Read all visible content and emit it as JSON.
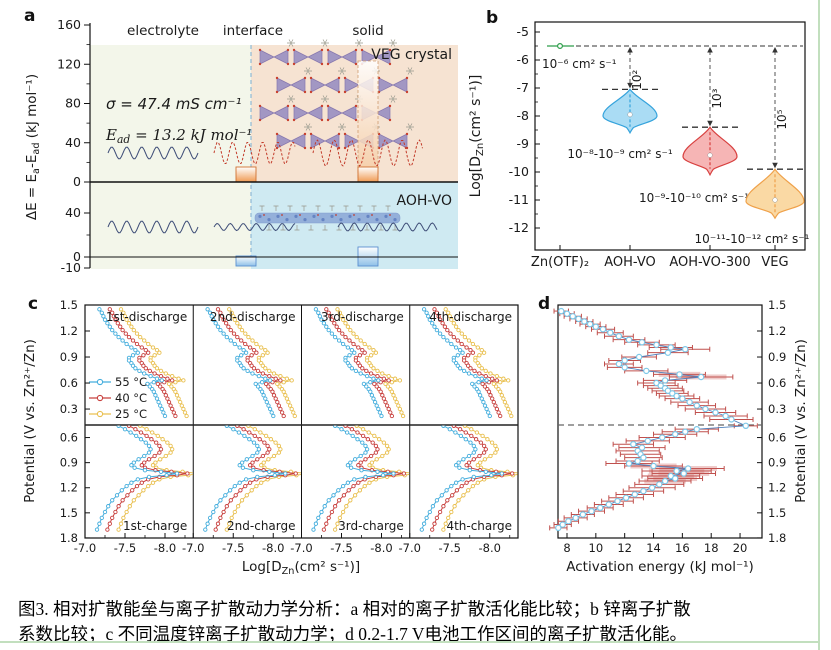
{
  "caption": {
    "line1": "图3. 相对扩散能垒与离子扩散动力学分析：a 相对的离子扩散活化能比较；b 锌离子扩散",
    "line2": "系数比较；c 不同温度锌离子扩散动力学；d 0.2-1.7 V电池工作区间的离子扩散活化能。"
  },
  "chart_data": [
    {
      "panel": "a",
      "label": "a",
      "type": "diagram",
      "title": "relative ion diffusion energy barrier schematic",
      "region_labels": [
        "electrolyte",
        "interface",
        "solid"
      ],
      "ylabel_parts": [
        {
          "t": "ΔE = E"
        },
        {
          "t": "a",
          "sub": true
        },
        {
          "t": "-E"
        },
        {
          "t": "ad",
          "sub": true
        },
        {
          "t": " (kJ mol⁻¹)"
        }
      ],
      "upper_ticks": [
        160,
        120,
        80,
        40,
        0
      ],
      "lower_ticks": [
        40,
        0,
        -10
      ],
      "sigma_text": "σ = 47.4 mS cm⁻¹",
      "ead_parts": [
        {
          "t": "E",
          "it": true
        },
        {
          "t": "ad",
          "sub": true,
          "it": true
        },
        {
          "t": " = 13.2 kJ mol⁻¹",
          "it": true
        }
      ],
      "veg_label": "VEG crystal",
      "aoh_label": "AOH-VO",
      "estimated_bars_kJmol": {
        "veg_interface": 13,
        "veg_solid_dashed_top": 120,
        "aoh_vo_bars": -5
      },
      "colors": {
        "electrolyte_bg": "#f3f6ea",
        "veg_bg": "#f6e3d2",
        "aoh_bg": "#cfeaf2",
        "wave_dark": "#3f4e78",
        "wave_red": "#c23b2a",
        "bar_orange": "#e98a3c",
        "bar_blue": "#5b8fd0",
        "interface_line": "#90b9d6"
      }
    },
    {
      "panel": "b",
      "label": "b",
      "type": "violin",
      "ylabel_parts": [
        {
          "t": "Log[D"
        },
        {
          "t": "Zn",
          "sub": true
        },
        {
          "t": "(cm² s⁻¹)]"
        }
      ],
      "y_ticks": [
        -5,
        -6,
        -7,
        -8,
        -9,
        -10,
        -11,
        -12
      ],
      "ylim": [
        -5,
        -12.6
      ],
      "baseline_logD": -5.5,
      "categories": [
        {
          "name": "Zn(OTF)₂",
          "color": "#2e9e4a",
          "kind": "point",
          "logD": -5.5,
          "range_label": "10⁻⁶ cm² s⁻¹"
        },
        {
          "name": "AOH-VO",
          "color": "#35a3dc",
          "fill": "#aadcf4",
          "kind": "violin",
          "logD_top": -7.05,
          "logD_bottom": -8.6,
          "median": -7.95,
          "widest": -8.0,
          "halfwidth": 27,
          "range_label": "10⁻⁸-10⁻⁹ cm² s⁻¹",
          "factor_label": "10²"
        },
        {
          "name": "AOH-VO-300",
          "color": "#d8403f",
          "fill": "#f6b5b5",
          "kind": "violin",
          "logD_top": -8.4,
          "logD_bottom": -10.1,
          "median": -9.4,
          "widest": -9.45,
          "halfwidth": 27,
          "range_label": "10⁻⁹-10⁻¹⁰ cm² s⁻¹",
          "factor_label": "10³"
        },
        {
          "name": "VEG",
          "color": "#efa14a",
          "fill": "#fad9a4",
          "kind": "violin",
          "logD_top": -9.9,
          "logD_bottom": -11.65,
          "median": -11.0,
          "widest": -11.05,
          "halfwidth": 29,
          "range_label": "10⁻¹¹-10⁻¹² cm² s⁻¹",
          "factor_label": "10⁵"
        }
      ]
    },
    {
      "panel": "c",
      "label": "c",
      "type": "line",
      "xlabel_parts": [
        {
          "t": "Log[D"
        },
        {
          "t": "Zn",
          "sub": true
        },
        {
          "t": "(cm² s⁻¹)]"
        }
      ],
      "ylabel": "Potential (V vs. Zn²⁺/Zn)",
      "x_ticks": [
        -7.0,
        -7.5,
        -8.0
      ],
      "xlim": [
        -7.0,
        -8.35
      ],
      "y_ticks_top": [
        1.5,
        1.2,
        0.9,
        0.6,
        0.3
      ],
      "y_ticks_bottom": [
        0.6,
        0.9,
        1.2,
        1.5,
        1.8
      ],
      "subplots_top": [
        "1st-discharge",
        "2nd-discharge",
        "3rd-discharge",
        "4th-discharge"
      ],
      "subplots_bottom": [
        "1st-charge",
        "2nd-charge",
        "3rd-charge",
        "4th-charge"
      ],
      "legend": [
        {
          "label": "55 °C",
          "color": "#45aedd"
        },
        {
          "label": "40 °C",
          "color": "#c8403e"
        },
        {
          "label": "25 °C",
          "color": "#e9c050"
        }
      ],
      "temp_offsets": [
        0,
        0.13,
        0.27
      ],
      "discharge_base": [
        [
          1.45,
          -7.18
        ],
        [
          1.41,
          -7.21
        ],
        [
          1.37,
          -7.23
        ],
        [
          1.33,
          -7.25
        ],
        [
          1.29,
          -7.28
        ],
        [
          1.25,
          -7.31
        ],
        [
          1.21,
          -7.34
        ],
        [
          1.17,
          -7.38
        ],
        [
          1.13,
          -7.42
        ],
        [
          1.09,
          -7.47
        ],
        [
          1.05,
          -7.52
        ],
        [
          1.01,
          -7.58
        ],
        [
          0.98,
          -7.63
        ],
        [
          0.95,
          -7.66
        ],
        [
          0.92,
          -7.6
        ],
        [
          0.89,
          -7.55
        ],
        [
          0.86,
          -7.55
        ],
        [
          0.83,
          -7.58
        ],
        [
          0.8,
          -7.6
        ],
        [
          0.77,
          -7.63
        ],
        [
          0.74,
          -7.68
        ],
        [
          0.71,
          -7.74
        ],
        [
          0.68,
          -7.82
        ],
        [
          0.65,
          -7.9
        ],
        [
          0.63,
          -7.96
        ],
        [
          0.61,
          -7.86
        ],
        [
          0.59,
          -7.78
        ],
        [
          0.56,
          -7.81
        ],
        [
          0.53,
          -7.84
        ],
        [
          0.5,
          -7.86
        ],
        [
          0.46,
          -7.88
        ],
        [
          0.42,
          -7.9
        ],
        [
          0.38,
          -7.92
        ],
        [
          0.34,
          -7.94
        ],
        [
          0.3,
          -7.96
        ],
        [
          0.26,
          -7.98
        ],
        [
          0.22,
          -8.0
        ]
      ],
      "charge_base": [
        [
          0.46,
          -7.42
        ],
        [
          0.5,
          -7.5
        ],
        [
          0.54,
          -7.57
        ],
        [
          0.58,
          -7.64
        ],
        [
          0.62,
          -7.7
        ],
        [
          0.66,
          -7.76
        ],
        [
          0.7,
          -7.8
        ],
        [
          0.74,
          -7.82
        ],
        [
          0.78,
          -7.8
        ],
        [
          0.82,
          -7.74
        ],
        [
          0.86,
          -7.67
        ],
        [
          0.9,
          -7.61
        ],
        [
          0.93,
          -7.58
        ],
        [
          0.96,
          -7.62
        ],
        [
          0.99,
          -7.75
        ],
        [
          1.01,
          -7.95
        ],
        [
          1.03,
          -8.15
        ],
        [
          1.05,
          -8.02
        ],
        [
          1.07,
          -7.8
        ],
        [
          1.1,
          -7.66
        ],
        [
          1.14,
          -7.58
        ],
        [
          1.18,
          -7.52
        ],
        [
          1.23,
          -7.46
        ],
        [
          1.29,
          -7.4
        ],
        [
          1.35,
          -7.34
        ],
        [
          1.42,
          -7.29
        ],
        [
          1.49,
          -7.25
        ],
        [
          1.56,
          -7.21
        ],
        [
          1.63,
          -7.18
        ],
        [
          1.7,
          -7.15
        ]
      ]
    },
    {
      "panel": "d",
      "label": "d",
      "type": "scatter-errorbar",
      "xlabel": "Activation energy (kJ mol⁻¹)",
      "ylabel": "Potential (V vs. Zn²⁺/Zn)",
      "x_ticks": [
        8,
        10,
        12,
        14,
        16,
        18,
        20
      ],
      "xlim": [
        7.3,
        21.5
      ],
      "y_ticks_top": [
        1.5,
        1.2,
        0.9,
        0.6,
        0.3
      ],
      "y_ticks_bottom": [
        0.6,
        0.9,
        1.2,
        1.5,
        1.8
      ],
      "marker_color": "#7ec8e8",
      "line_color": "#4f81bd",
      "error_color": "#c0504d",
      "discharge_points": [
        [
          7.6,
          1.43,
          0.5
        ],
        [
          8.0,
          1.4,
          0.5
        ],
        [
          8.4,
          1.37,
          0.6
        ],
        [
          8.8,
          1.34,
          0.6
        ],
        [
          9.2,
          1.31,
          0.6
        ],
        [
          9.6,
          1.28,
          0.7
        ],
        [
          10.0,
          1.25,
          0.7
        ],
        [
          10.5,
          1.22,
          0.8
        ],
        [
          11.0,
          1.18,
          0.9
        ],
        [
          11.6,
          1.14,
          1.0
        ],
        [
          12.3,
          1.1,
          1.1
        ],
        [
          13.2,
          1.07,
          1.2
        ],
        [
          14.2,
          1.04,
          1.3
        ],
        [
          15.2,
          1.01,
          1.5
        ],
        [
          16.2,
          0.99,
          1.7
        ],
        [
          15.0,
          0.95,
          1.4
        ],
        [
          13.0,
          0.9,
          1.2
        ],
        [
          12.0,
          0.86,
          1.1
        ],
        [
          11.6,
          0.82,
          1.0
        ],
        [
          12.0,
          0.78,
          1.2
        ],
        [
          13.5,
          0.74,
          1.5
        ],
        [
          15.8,
          0.7,
          1.8
        ],
        [
          17.3,
          0.67,
          2.2
        ],
        [
          14.8,
          0.63,
          1.5
        ],
        [
          14.2,
          0.6,
          1.3
        ],
        [
          14.5,
          0.57,
          1.2
        ],
        [
          14.8,
          0.54,
          1.2
        ],
        [
          15.0,
          0.51,
          1.1
        ],
        [
          15.3,
          0.48,
          1.1
        ],
        [
          15.6,
          0.45,
          1.2
        ],
        [
          16.0,
          0.42,
          1.2
        ],
        [
          16.5,
          0.38,
          1.3
        ],
        [
          17.0,
          0.34,
          1.3
        ],
        [
          17.6,
          0.3,
          1.4
        ],
        [
          18.3,
          0.26,
          1.4
        ],
        [
          19.0,
          0.22,
          1.5
        ],
        [
          19.4,
          0.18,
          1.5
        ]
      ],
      "charge_points": [
        [
          20.4,
          0.46,
          0.8
        ],
        [
          17.0,
          0.5,
          1.5
        ],
        [
          16.2,
          0.53,
          1.6
        ],
        [
          15.5,
          0.56,
          1.5
        ],
        [
          14.6,
          0.6,
          1.6
        ],
        [
          13.6,
          0.64,
          1.5
        ],
        [
          12.6,
          0.68,
          1.4
        ],
        [
          13.2,
          0.72,
          1.6
        ],
        [
          12.9,
          0.76,
          1.5
        ],
        [
          13.1,
          0.8,
          1.4
        ],
        [
          13.3,
          0.84,
          1.3
        ],
        [
          12.9,
          0.88,
          1.5
        ],
        [
          12.3,
          0.91,
          1.6
        ],
        [
          14.0,
          0.94,
          2.0
        ],
        [
          16.4,
          0.97,
          2.5
        ],
        [
          15.6,
          1.0,
          2.4
        ],
        [
          16.1,
          1.03,
          2.2
        ],
        [
          15.2,
          1.06,
          2.0
        ],
        [
          15.5,
          1.09,
          1.9
        ],
        [
          14.8,
          1.12,
          1.8
        ],
        [
          14.4,
          1.16,
          1.7
        ],
        [
          13.9,
          1.2,
          1.6
        ],
        [
          13.3,
          1.24,
          1.4
        ],
        [
          12.7,
          1.28,
          1.3
        ],
        [
          12.1,
          1.32,
          1.2
        ],
        [
          11.5,
          1.36,
          1.1
        ],
        [
          10.9,
          1.4,
          1.0
        ],
        [
          10.3,
          1.44,
          0.9
        ],
        [
          9.7,
          1.48,
          0.9
        ],
        [
          9.1,
          1.52,
          0.8
        ],
        [
          8.6,
          1.56,
          0.8
        ],
        [
          8.1,
          1.6,
          0.7
        ],
        [
          7.7,
          1.64,
          0.6
        ],
        [
          7.4,
          1.68,
          0.6
        ]
      ]
    }
  ]
}
